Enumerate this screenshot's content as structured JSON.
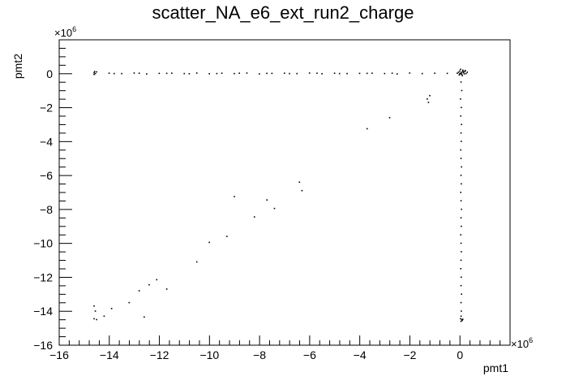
{
  "chart_data": {
    "type": "scatter",
    "title": "scatter_NA_e6_ext_run2_charge",
    "xlabel": "pmt1",
    "ylabel": "pmt2",
    "x_multiplier": "10",
    "x_multiplier_exp": "6",
    "y_multiplier": "10",
    "y_multiplier_exp": "6",
    "xlim": [
      -16,
      2
    ],
    "ylim": [
      -16,
      2
    ],
    "x_ticks": [
      -16,
      -14,
      -12,
      -10,
      -8,
      -6,
      -4,
      -2,
      0
    ],
    "y_ticks": [
      0,
      -2,
      -4,
      -6,
      -8,
      -10,
      -12,
      -14,
      -16
    ],
    "x_tick_labels": [
      "−16",
      "−14",
      "−12",
      "−10",
      "−8",
      "−6",
      "−4",
      "−2",
      "0"
    ],
    "y_tick_labels": [
      "0",
      "−2",
      "−4",
      "−6",
      "−8",
      "−10",
      "−12",
      "−14",
      "−16"
    ],
    "grid": false,
    "marker_color": "#000000",
    "series": [
      {
        "points": [
          [
            0.05,
            0.02
          ],
          [
            0.1,
            0.1
          ],
          [
            0.0,
            0.15
          ],
          [
            0.15,
            0.05
          ],
          [
            0.2,
            0.12
          ],
          [
            -0.05,
            0.08
          ],
          [
            0.08,
            -0.05
          ],
          [
            0.12,
            0.2
          ],
          [
            0.18,
            -0.02
          ],
          [
            0.03,
            0.25
          ],
          [
            -0.02,
            -0.08
          ],
          [
            0.22,
            0.18
          ],
          [
            0.1,
            -0.12
          ],
          [
            0.25,
            0.0
          ],
          [
            0.06,
            0.05
          ],
          [
            -0.1,
            0.02
          ],
          [
            0.14,
            0.14
          ],
          [
            0.02,
            -0.02
          ],
          [
            0.3,
            0.08
          ],
          [
            0.0,
            0.0
          ],
          [
            -14.6,
            0.05
          ],
          [
            -14.55,
            0.0
          ],
          [
            -14.6,
            -0.05
          ],
          [
            -14.5,
            0.1
          ],
          [
            -14.58,
            0.12
          ],
          [
            -14.0,
            0.02
          ],
          [
            -13.5,
            0.0
          ],
          [
            -13.0,
            0.03
          ],
          [
            -12.5,
            -0.02
          ],
          [
            -12.0,
            0.01
          ],
          [
            -11.5,
            0.02
          ],
          [
            -11.0,
            0.0
          ],
          [
            -10.5,
            0.03
          ],
          [
            -10.0,
            -0.01
          ],
          [
            -9.5,
            0.02
          ],
          [
            -9.0,
            0.0
          ],
          [
            -8.5,
            0.03
          ],
          [
            -8.0,
            -0.02
          ],
          [
            -7.5,
            0.01
          ],
          [
            -7.0,
            0.02
          ],
          [
            -6.5,
            0.0
          ],
          [
            -6.0,
            0.03
          ],
          [
            -5.5,
            -0.01
          ],
          [
            -5.0,
            0.02
          ],
          [
            -4.5,
            0.0
          ],
          [
            -4.0,
            0.01
          ],
          [
            -3.5,
            0.02
          ],
          [
            -3.0,
            0.0
          ],
          [
            -2.5,
            -0.02
          ],
          [
            -2.0,
            0.03
          ],
          [
            -1.5,
            0.0
          ],
          [
            -1.0,
            0.02
          ],
          [
            -0.5,
            0.01
          ],
          [
            -13.8,
            0.0
          ],
          [
            -12.8,
            0.02
          ],
          [
            -11.7,
            0.01
          ],
          [
            -10.8,
            -0.01
          ],
          [
            -9.7,
            0.0
          ],
          [
            -8.8,
            0.02
          ],
          [
            -7.7,
            0.01
          ],
          [
            -6.8,
            0.0
          ],
          [
            -5.7,
            0.02
          ],
          [
            -4.8,
            0.0
          ],
          [
            -3.7,
            0.01
          ],
          [
            -2.7,
            0.02
          ],
          [
            0.05,
            -0.5
          ],
          [
            0.08,
            -1.0
          ],
          [
            0.03,
            -1.5
          ],
          [
            0.06,
            -2.0
          ],
          [
            0.04,
            -2.5
          ],
          [
            0.07,
            -3.0
          ],
          [
            0.05,
            -3.5
          ],
          [
            0.06,
            -4.0
          ],
          [
            0.04,
            -4.5
          ],
          [
            0.05,
            -5.0
          ],
          [
            0.07,
            -5.5
          ],
          [
            0.05,
            -6.0
          ],
          [
            0.06,
            -6.5
          ],
          [
            0.04,
            -7.0
          ],
          [
            0.05,
            -7.5
          ],
          [
            0.07,
            -8.0
          ],
          [
            0.05,
            -8.5
          ],
          [
            0.06,
            -9.0
          ],
          [
            0.04,
            -9.5
          ],
          [
            0.05,
            -10.0
          ],
          [
            0.06,
            -10.5
          ],
          [
            0.05,
            -11.0
          ],
          [
            0.04,
            -11.5
          ],
          [
            0.06,
            -12.0
          ],
          [
            0.05,
            -12.5
          ],
          [
            0.07,
            -13.0
          ],
          [
            0.05,
            -13.5
          ],
          [
            0.06,
            -14.0
          ],
          [
            0.05,
            -14.3
          ],
          [
            0.03,
            -14.45
          ],
          [
            0.08,
            -14.5
          ],
          [
            0.1,
            -14.55
          ],
          [
            0.05,
            -14.6
          ],
          [
            0.12,
            -14.48
          ],
          [
            -14.6,
            -13.7
          ],
          [
            -14.55,
            -14.0
          ],
          [
            -14.6,
            -14.45
          ],
          [
            -14.5,
            -14.5
          ],
          [
            -14.2,
            -14.3
          ],
          [
            -13.9,
            -13.85
          ],
          [
            -13.2,
            -13.5
          ],
          [
            -12.8,
            -12.8
          ],
          [
            -12.4,
            -12.45
          ],
          [
            -12.1,
            -12.15
          ],
          [
            -11.7,
            -12.7
          ],
          [
            -12.6,
            -14.35
          ],
          [
            -10.5,
            -11.1
          ],
          [
            -10.0,
            -9.95
          ],
          [
            -9.3,
            -9.6
          ],
          [
            -9.0,
            -7.25
          ],
          [
            -8.2,
            -8.45
          ],
          [
            -7.7,
            -7.45
          ],
          [
            -7.4,
            -7.95
          ],
          [
            -6.4,
            -6.4
          ],
          [
            -6.3,
            -6.9
          ],
          [
            -3.7,
            -3.25
          ],
          [
            -2.8,
            -2.6
          ],
          [
            -1.3,
            -1.5
          ],
          [
            -1.2,
            -1.3
          ],
          [
            -1.25,
            -1.7
          ]
        ]
      }
    ]
  }
}
